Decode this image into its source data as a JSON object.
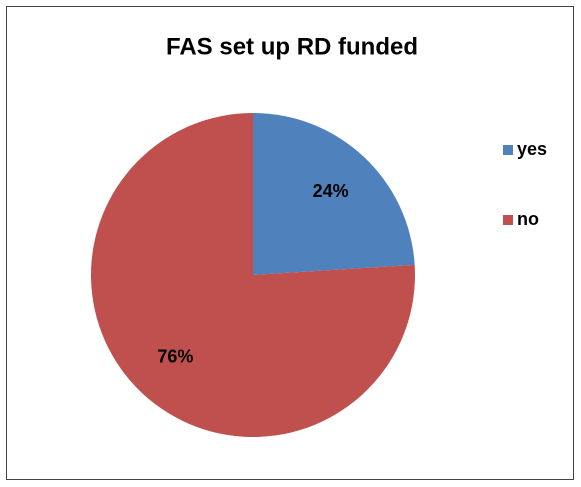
{
  "chart_data": {
    "type": "pie",
    "title": "FAS set up RD funded",
    "categories": [
      "yes",
      "no"
    ],
    "values": [
      24,
      76
    ],
    "value_labels": [
      "24%",
      "76%"
    ],
    "colors": [
      "#4f81bd",
      "#c0504d"
    ],
    "legend": "right"
  }
}
